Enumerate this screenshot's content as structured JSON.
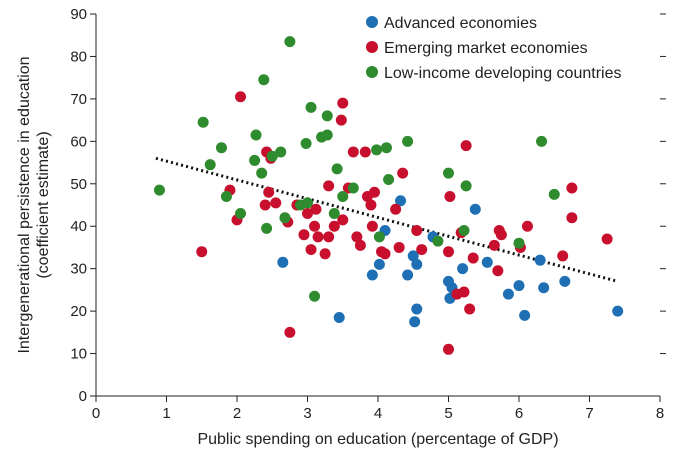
{
  "chart_data": {
    "type": "scatter",
    "xlabel": "Public spending on education (percentage of GDP)",
    "ylabel_lines": [
      "Intergenerational persistence in education",
      "(coefficient estimate)"
    ],
    "xlim": [
      0,
      8
    ],
    "ylim": [
      0,
      90
    ],
    "xticks": [
      0,
      1,
      2,
      3,
      4,
      5,
      6,
      7,
      8
    ],
    "yticks": [
      0,
      10,
      20,
      30,
      40,
      50,
      60,
      70,
      80,
      90
    ],
    "grid": false,
    "legend_position": "top-right",
    "trendline": {
      "style": "dotted",
      "color": "#000000",
      "x": [
        0.85,
        7.4
      ],
      "y": [
        56,
        27
      ]
    },
    "series": [
      {
        "name": "Advanced economies",
        "color": "#1f6fb5",
        "points": [
          [
            2.65,
            31.5
          ],
          [
            3.45,
            18.5
          ],
          [
            3.92,
            28.5
          ],
          [
            4.02,
            31
          ],
          [
            4.1,
            39
          ],
          [
            4.32,
            46
          ],
          [
            4.42,
            28.5
          ],
          [
            4.5,
            33
          ],
          [
            4.52,
            17.5
          ],
          [
            4.55,
            20.5
          ],
          [
            4.55,
            31
          ],
          [
            4.78,
            37.5
          ],
          [
            5.0,
            27
          ],
          [
            5.02,
            23
          ],
          [
            5.05,
            25.5
          ],
          [
            5.1,
            24
          ],
          [
            5.2,
            30
          ],
          [
            5.38,
            44
          ],
          [
            5.55,
            31.5
          ],
          [
            5.85,
            24
          ],
          [
            6.0,
            26
          ],
          [
            6.08,
            19
          ],
          [
            6.3,
            32
          ],
          [
            6.35,
            25.5
          ],
          [
            6.65,
            27
          ],
          [
            7.4,
            20
          ]
        ]
      },
      {
        "name": "Emerging market economies",
        "color": "#c8102e",
        "points": [
          [
            1.5,
            34
          ],
          [
            1.9,
            48.5
          ],
          [
            2.0,
            41.5
          ],
          [
            2.05,
            70.5
          ],
          [
            2.4,
            45
          ],
          [
            2.42,
            57.5
          ],
          [
            2.45,
            48
          ],
          [
            2.48,
            56
          ],
          [
            2.55,
            45.5
          ],
          [
            2.72,
            41
          ],
          [
            2.75,
            15
          ],
          [
            2.85,
            45
          ],
          [
            2.95,
            38
          ],
          [
            3.0,
            43
          ],
          [
            3.05,
            34.5
          ],
          [
            3.1,
            40
          ],
          [
            3.12,
            44
          ],
          [
            3.15,
            37.5
          ],
          [
            3.25,
            33.5
          ],
          [
            3.3,
            49.5
          ],
          [
            3.3,
            37.5
          ],
          [
            3.38,
            40
          ],
          [
            3.48,
            65
          ],
          [
            3.5,
            41.5
          ],
          [
            3.5,
            69
          ],
          [
            3.58,
            49
          ],
          [
            3.65,
            57.5
          ],
          [
            3.7,
            37.5
          ],
          [
            3.75,
            35.5
          ],
          [
            3.82,
            57.5
          ],
          [
            3.85,
            47
          ],
          [
            3.9,
            45
          ],
          [
            3.92,
            40
          ],
          [
            3.95,
            48
          ],
          [
            4.05,
            34
          ],
          [
            4.1,
            33.5
          ],
          [
            4.25,
            44
          ],
          [
            4.3,
            35
          ],
          [
            4.35,
            52.5
          ],
          [
            4.55,
            39
          ],
          [
            4.62,
            34.5
          ],
          [
            5.0,
            11
          ],
          [
            5.0,
            34
          ],
          [
            5.02,
            47
          ],
          [
            5.12,
            24
          ],
          [
            5.18,
            38.5
          ],
          [
            5.22,
            24.5
          ],
          [
            5.25,
            59
          ],
          [
            5.3,
            20.5
          ],
          [
            5.35,
            32.5
          ],
          [
            5.65,
            35.5
          ],
          [
            5.7,
            29.5
          ],
          [
            5.72,
            39
          ],
          [
            5.75,
            38
          ],
          [
            6.02,
            35
          ],
          [
            6.12,
            40
          ],
          [
            6.62,
            33
          ],
          [
            6.75,
            49
          ],
          [
            6.75,
            42
          ],
          [
            7.25,
            37
          ]
        ]
      },
      {
        "name": "Low-income developing countries",
        "color": "#2e8b2e",
        "points": [
          [
            0.9,
            48.5
          ],
          [
            1.52,
            64.5
          ],
          [
            1.62,
            54.5
          ],
          [
            1.78,
            58.5
          ],
          [
            1.85,
            47
          ],
          [
            2.05,
            43
          ],
          [
            2.25,
            55.5
          ],
          [
            2.27,
            61.5
          ],
          [
            2.35,
            52.5
          ],
          [
            2.38,
            74.5
          ],
          [
            2.42,
            39.5
          ],
          [
            2.5,
            56.5
          ],
          [
            2.62,
            57.5
          ],
          [
            2.68,
            42
          ],
          [
            2.75,
            83.5
          ],
          [
            2.9,
            45
          ],
          [
            2.98,
            59.5
          ],
          [
            3.0,
            45.5
          ],
          [
            3.05,
            68
          ],
          [
            3.1,
            23.5
          ],
          [
            3.2,
            61
          ],
          [
            3.28,
            61.5
          ],
          [
            3.28,
            66
          ],
          [
            3.38,
            43
          ],
          [
            3.42,
            53.5
          ],
          [
            3.5,
            47
          ],
          [
            3.65,
            49
          ],
          [
            3.98,
            58
          ],
          [
            4.02,
            37.5
          ],
          [
            4.12,
            58.5
          ],
          [
            4.15,
            51
          ],
          [
            4.42,
            60
          ],
          [
            4.85,
            36.5
          ],
          [
            5.0,
            52.5
          ],
          [
            5.22,
            39
          ],
          [
            5.25,
            49.5
          ],
          [
            6.0,
            36
          ],
          [
            6.32,
            60
          ],
          [
            6.5,
            47.5
          ]
        ]
      }
    ]
  }
}
